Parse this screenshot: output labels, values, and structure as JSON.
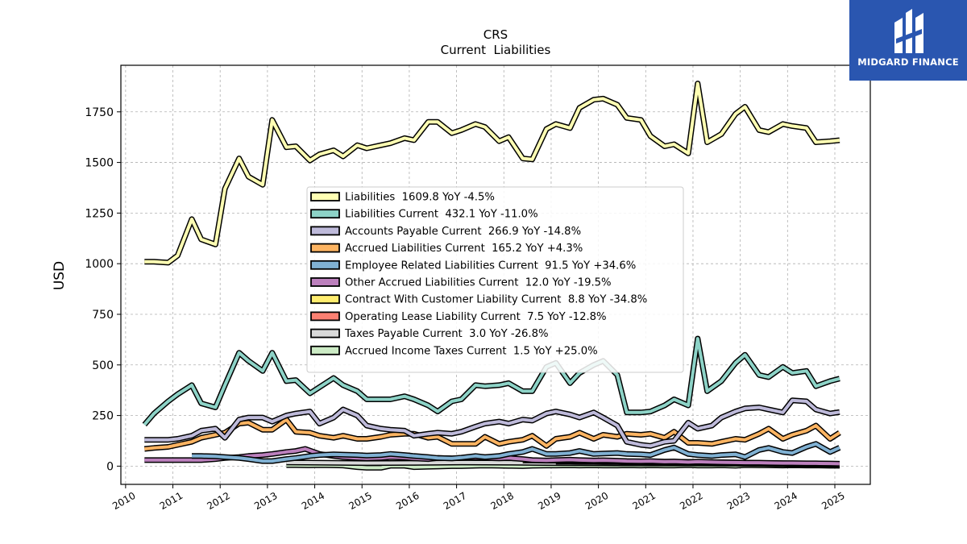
{
  "chart_data": {
    "type": "line",
    "title": "CRS",
    "subtitle": "Current  Liabilities",
    "xlabel": "",
    "ylabel": "USD",
    "xlim": [
      2009.9,
      2025.75
    ],
    "ylim": [
      -90,
      1980
    ],
    "x_ticks": [
      "2010",
      "2011",
      "2012",
      "2013",
      "2014",
      "2015",
      "2016",
      "2017",
      "2018",
      "2019",
      "2020",
      "2021",
      "2022",
      "2023",
      "2024",
      "2025"
    ],
    "y_ticks": [
      "0",
      "250",
      "500",
      "750",
      "1000",
      "1250",
      "1500",
      "1750"
    ],
    "grid": true,
    "legend_position": "center",
    "series": [
      {
        "name": "Accrued Income Taxes Current",
        "legend": "Accrued Income Taxes Current  1.5 YoY +25.0%",
        "color": "#ccebc5",
        "x": [
          2013.4,
          2013.6,
          2013.9,
          2014.1,
          2014.4,
          2014.6,
          2014.9,
          2015.1,
          2015.4,
          2015.6,
          2015.9,
          2016.1,
          2016.4,
          2016.6,
          2016.9,
          2017.1,
          2017.4,
          2017.6,
          2017.9,
          2018.1,
          2018.4,
          2018.6,
          2018.9,
          2019.1,
          2019.4,
          2019.6,
          2019.9,
          2020.1,
          2020.4,
          2020.6,
          2020.9,
          2021.1,
          2021.4,
          2021.6,
          2021.9,
          2022.1,
          2022.4,
          2022.6,
          2022.9,
          2023.1,
          2023.4,
          2023.6,
          2023.9,
          2024.1,
          2024.4,
          2024.6,
          2024.9,
          2025.1
        ],
        "y": [
          5,
          5,
          4,
          5,
          4,
          3,
          -5,
          -8,
          -8,
          2,
          2,
          -5,
          -3,
          -2,
          0,
          0,
          2,
          3,
          2,
          1,
          0,
          2,
          3,
          3,
          4,
          3,
          4,
          3,
          3,
          4,
          3,
          4,
          3,
          3,
          5,
          3,
          3,
          4,
          2,
          5,
          4,
          4,
          3,
          4,
          3,
          3,
          2,
          2
        ]
      },
      {
        "name": "Taxes Payable Current",
        "legend": "Taxes Payable Current  3.0 YoY -26.8%",
        "color": "#d9d9d9",
        "x": [
          2013.4,
          2014.1,
          2015.1,
          2016.1,
          2017.1,
          2018.1,
          2018.6,
          2019.1,
          2020.1,
          2021.1,
          2022.1,
          2023.1,
          2024.1,
          2025.1
        ],
        "y": [
          18,
          17,
          15,
          16,
          18,
          17,
          16,
          15,
          14,
          13,
          13,
          12,
          10,
          3
        ]
      },
      {
        "name": "Operating Lease Liability Current",
        "legend": "Operating Lease Liability Current  7.5 YoY -12.8%",
        "color": "#fb8072",
        "x": [
          2019.1,
          2019.4,
          2019.6,
          2019.9,
          2020.1,
          2020.4,
          2020.6,
          2020.9,
          2021.1,
          2021.4,
          2021.6,
          2021.9,
          2022.1,
          2022.4,
          2022.6,
          2022.9,
          2023.1,
          2023.4,
          2023.6,
          2023.9,
          2024.1,
          2024.4,
          2024.6,
          2024.9,
          2025.1
        ],
        "y": [
          22,
          22,
          21,
          21,
          20,
          20,
          19,
          19,
          18,
          18,
          17,
          17,
          16,
          16,
          15,
          15,
          14,
          12,
          11,
          10,
          9,
          9,
          8,
          8,
          7.5
        ]
      },
      {
        "name": "Contract With Customer Liability Current",
        "legend": "Contract With Customer Liability Current  8.8 YoY -34.8%",
        "color": "#ffed6f",
        "x": [
          2018.4,
          2018.6,
          2018.9,
          2019.1,
          2019.4,
          2019.6,
          2019.9,
          2020.1,
          2020.4,
          2020.6,
          2020.9,
          2021.1,
          2021.4,
          2021.6,
          2021.9,
          2022.1,
          2022.4,
          2022.6,
          2022.9,
          2023.1,
          2023.4,
          2023.6,
          2023.9,
          2024.1,
          2024.4,
          2024.6,
          2024.9,
          2025.1
        ],
        "y": [
          28,
          28,
          27,
          27,
          26,
          26,
          25,
          25,
          24,
          24,
          23,
          23,
          22,
          22,
          21,
          21,
          20,
          19,
          18,
          17,
          16,
          15,
          14,
          13,
          13,
          12,
          10,
          8.8
        ]
      },
      {
        "name": "Other Accrued Liabilities Current",
        "legend": "Other Accrued Liabilities Current  12.0 YoY -19.5%",
        "color": "#bc80bd",
        "x": [
          2010.4,
          2010.6,
          2010.9,
          2011.1,
          2011.4,
          2011.6,
          2011.9,
          2012.1,
          2012.4,
          2012.6,
          2012.9,
          2013.1,
          2013.4,
          2013.6,
          2013.8,
          2014.1,
          2014.4,
          2014.6,
          2014.9,
          2015.1,
          2015.4,
          2015.6,
          2015.9,
          2016.1,
          2016.4,
          2016.6,
          2016.9,
          2017.1,
          2017.4,
          2017.6,
          2017.9,
          2018.1,
          2018.4,
          2018.6,
          2018.9,
          2019.1,
          2019.4,
          2019.6,
          2019.9,
          2020.1,
          2020.4,
          2020.6,
          2020.9,
          2021.1,
          2021.4,
          2021.6,
          2021.9,
          2022.1,
          2022.4,
          2022.6,
          2022.9,
          2023.1,
          2023.4,
          2023.6,
          2023.9,
          2024.1,
          2024.4,
          2024.6,
          2024.9,
          2025.1
        ],
        "y": [
          30,
          30,
          30,
          30,
          30,
          30,
          35,
          40,
          45,
          50,
          55,
          60,
          70,
          75,
          85,
          60,
          50,
          45,
          40,
          38,
          40,
          45,
          42,
          38,
          35,
          40,
          38,
          40,
          42,
          40,
          38,
          40,
          35,
          30,
          28,
          30,
          32,
          30,
          28,
          29,
          27,
          25,
          24,
          25,
          22,
          23,
          20,
          22,
          20,
          19,
          18,
          17,
          17,
          16,
          15,
          15,
          14,
          14,
          13,
          12
        ]
      },
      {
        "name": "Employee Related Liabilities Current",
        "legend": "Employee Related Liabilities Current  91.5 YoY +34.6%",
        "color": "#80b1d3",
        "x": [
          2011.4,
          2011.6,
          2011.9,
          2012.1,
          2012.4,
          2012.6,
          2012.9,
          2013.1,
          2013.4,
          2013.6,
          2013.9,
          2014.1,
          2014.4,
          2014.6,
          2014.9,
          2015.1,
          2015.4,
          2015.6,
          2015.9,
          2016.1,
          2016.4,
          2016.6,
          2016.9,
          2017.1,
          2017.4,
          2017.6,
          2017.9,
          2018.1,
          2018.4,
          2018.6,
          2018.9,
          2019.1,
          2019.4,
          2019.6,
          2019.9,
          2020.1,
          2020.4,
          2020.6,
          2020.9,
          2021.1,
          2021.4,
          2021.6,
          2021.9,
          2022.1,
          2022.4,
          2022.6,
          2022.9,
          2023.1,
          2023.4,
          2023.6,
          2023.9,
          2024.1,
          2024.4,
          2024.6,
          2024.9,
          2025.1
        ],
        "y": [
          50,
          50,
          48,
          45,
          40,
          35,
          25,
          25,
          35,
          40,
          50,
          55,
          58,
          57,
          55,
          52,
          55,
          60,
          55,
          50,
          45,
          40,
          38,
          42,
          50,
          45,
          50,
          60,
          70,
          85,
          60,
          60,
          65,
          75,
          60,
          62,
          65,
          60,
          58,
          55,
          80,
          92,
          60,
          55,
          50,
          55,
          58,
          45,
          80,
          90,
          70,
          65,
          95,
          110,
          70,
          91.5
        ]
      },
      {
        "name": "Accrued Liabilities Current",
        "legend": "Accrued Liabilities Current  165.2 YoY +4.3%",
        "color": "#fdb462",
        "x": [
          2010.4,
          2010.6,
          2010.9,
          2011.1,
          2011.4,
          2011.6,
          2011.9,
          2012.1,
          2012.4,
          2012.6,
          2012.9,
          2013.1,
          2013.4,
          2013.6,
          2013.9,
          2014.1,
          2014.4,
          2014.6,
          2014.9,
          2015.1,
          2015.4,
          2015.6,
          2015.9,
          2016.1,
          2016.4,
          2016.6,
          2016.9,
          2017.1,
          2017.4,
          2017.6,
          2017.9,
          2018.1,
          2018.4,
          2018.6,
          2018.9,
          2019.1,
          2019.4,
          2019.6,
          2019.9,
          2020.1,
          2020.4,
          2020.6,
          2020.9,
          2021.1,
          2021.4,
          2021.6,
          2021.9,
          2022.1,
          2022.4,
          2022.6,
          2022.9,
          2023.1,
          2023.4,
          2023.6,
          2023.9,
          2024.1,
          2024.4,
          2024.6,
          2024.9,
          2025.1
        ],
        "y": [
          85,
          90,
          95,
          105,
          120,
          140,
          155,
          165,
          210,
          215,
          180,
          180,
          230,
          170,
          165,
          150,
          140,
          150,
          135,
          135,
          145,
          155,
          160,
          160,
          140,
          145,
          110,
          110,
          110,
          145,
          110,
          120,
          130,
          150,
          100,
          135,
          145,
          165,
          135,
          155,
          145,
          160,
          155,
          160,
          140,
          170,
          115,
          115,
          110,
          120,
          135,
          130,
          160,
          185,
          135,
          155,
          175,
          200,
          135,
          165.2
        ]
      },
      {
        "name": "Accounts Payable Current",
        "legend": "Accounts Payable Current  266.9 YoY -14.8%",
        "color": "#bebada",
        "x": [
          2010.4,
          2010.6,
          2010.9,
          2011.1,
          2011.4,
          2011.6,
          2011.9,
          2012.1,
          2012.4,
          2012.6,
          2012.9,
          2013.1,
          2013.4,
          2013.6,
          2013.9,
          2014.1,
          2014.4,
          2014.6,
          2014.9,
          2015.1,
          2015.4,
          2015.6,
          2015.9,
          2016.1,
          2016.4,
          2016.6,
          2016.9,
          2017.1,
          2017.4,
          2017.6,
          2017.9,
          2018.1,
          2018.4,
          2018.6,
          2018.9,
          2019.1,
          2019.4,
          2019.6,
          2019.9,
          2020.1,
          2020.4,
          2020.6,
          2020.9,
          2021.1,
          2021.4,
          2021.6,
          2021.9,
          2022.1,
          2022.4,
          2022.6,
          2022.9,
          2023.1,
          2023.4,
          2023.6,
          2023.9,
          2024.1,
          2024.4,
          2024.6,
          2024.9,
          2025.1
        ],
        "y": [
          130,
          130,
          130,
          135,
          150,
          175,
          185,
          140,
          230,
          240,
          240,
          220,
          250,
          260,
          270,
          210,
          240,
          280,
          250,
          200,
          185,
          180,
          175,
          150,
          160,
          165,
          160,
          170,
          195,
          210,
          220,
          210,
          230,
          225,
          260,
          270,
          255,
          240,
          265,
          240,
          200,
          120,
          105,
          100,
          120,
          125,
          215,
          185,
          200,
          240,
          270,
          285,
          290,
          280,
          265,
          325,
          320,
          280,
          260,
          266.9
        ]
      },
      {
        "name": "Liabilities Current",
        "legend": "Liabilities Current  432.1 YoY -11.0%",
        "color": "#8dd3c7",
        "x": [
          2010.4,
          2010.6,
          2010.9,
          2011.1,
          2011.4,
          2011.6,
          2011.9,
          2012.1,
          2012.4,
          2012.6,
          2012.9,
          2013.1,
          2013.4,
          2013.6,
          2013.9,
          2014.1,
          2014.4,
          2014.6,
          2014.9,
          2015.1,
          2015.4,
          2015.6,
          2015.9,
          2016.1,
          2016.4,
          2016.6,
          2016.9,
          2017.1,
          2017.4,
          2017.6,
          2017.9,
          2018.1,
          2018.4,
          2018.6,
          2018.9,
          2019.1,
          2019.4,
          2019.6,
          2019.9,
          2020.1,
          2020.4,
          2020.6,
          2020.9,
          2021.1,
          2021.4,
          2021.6,
          2021.9,
          2022.1,
          2022.3,
          2022.6,
          2022.9,
          2023.1,
          2023.4,
          2023.6,
          2023.9,
          2024.1,
          2024.4,
          2024.6,
          2024.9,
          2025.1
        ],
        "y": [
          205,
          260,
          320,
          355,
          400,
          310,
          290,
          400,
          560,
          520,
          470,
          560,
          420,
          425,
          360,
          390,
          435,
          400,
          370,
          330,
          330,
          330,
          345,
          330,
          300,
          270,
          320,
          330,
          400,
          395,
          400,
          410,
          370,
          370,
          490,
          510,
          410,
          460,
          500,
          520,
          450,
          265,
          265,
          270,
          300,
          330,
          300,
          630,
          370,
          420,
          510,
          550,
          450,
          440,
          490,
          460,
          470,
          395,
          420,
          432.1
        ]
      },
      {
        "name": "Liabilities",
        "legend": "Liabilities  1609.8 YoY -4.5%",
        "color": "#ffffb3",
        "x": [
          2010.4,
          2010.6,
          2010.9,
          2011.1,
          2011.4,
          2011.6,
          2011.9,
          2012.1,
          2012.4,
          2012.6,
          2012.9,
          2013.1,
          2013.4,
          2013.6,
          2013.9,
          2014.1,
          2014.4,
          2014.6,
          2014.9,
          2015.1,
          2015.4,
          2015.6,
          2015.9,
          2016.1,
          2016.4,
          2016.6,
          2016.9,
          2017.1,
          2017.4,
          2017.6,
          2017.9,
          2018.1,
          2018.4,
          2018.6,
          2018.9,
          2019.1,
          2019.4,
          2019.6,
          2019.9,
          2020.1,
          2020.4,
          2020.6,
          2020.9,
          2021.1,
          2021.4,
          2021.6,
          2021.9,
          2022.1,
          2022.3,
          2022.6,
          2022.9,
          2023.1,
          2023.4,
          2023.6,
          2023.9,
          2024.1,
          2024.4,
          2024.6,
          2024.9,
          2025.1
        ],
        "y": [
          1010,
          1010,
          1005,
          1040,
          1220,
          1120,
          1095,
          1370,
          1520,
          1430,
          1390,
          1710,
          1575,
          1580,
          1510,
          1540,
          1560,
          1530,
          1585,
          1570,
          1585,
          1595,
          1620,
          1610,
          1700,
          1700,
          1645,
          1660,
          1690,
          1675,
          1605,
          1625,
          1520,
          1515,
          1665,
          1690,
          1670,
          1770,
          1810,
          1815,
          1785,
          1720,
          1710,
          1630,
          1580,
          1590,
          1545,
          1890,
          1600,
          1640,
          1740,
          1775,
          1660,
          1650,
          1690,
          1680,
          1670,
          1600,
          1605,
          1609.8
        ]
      }
    ]
  },
  "brand": {
    "name": "MIDGARD FINANCE"
  }
}
